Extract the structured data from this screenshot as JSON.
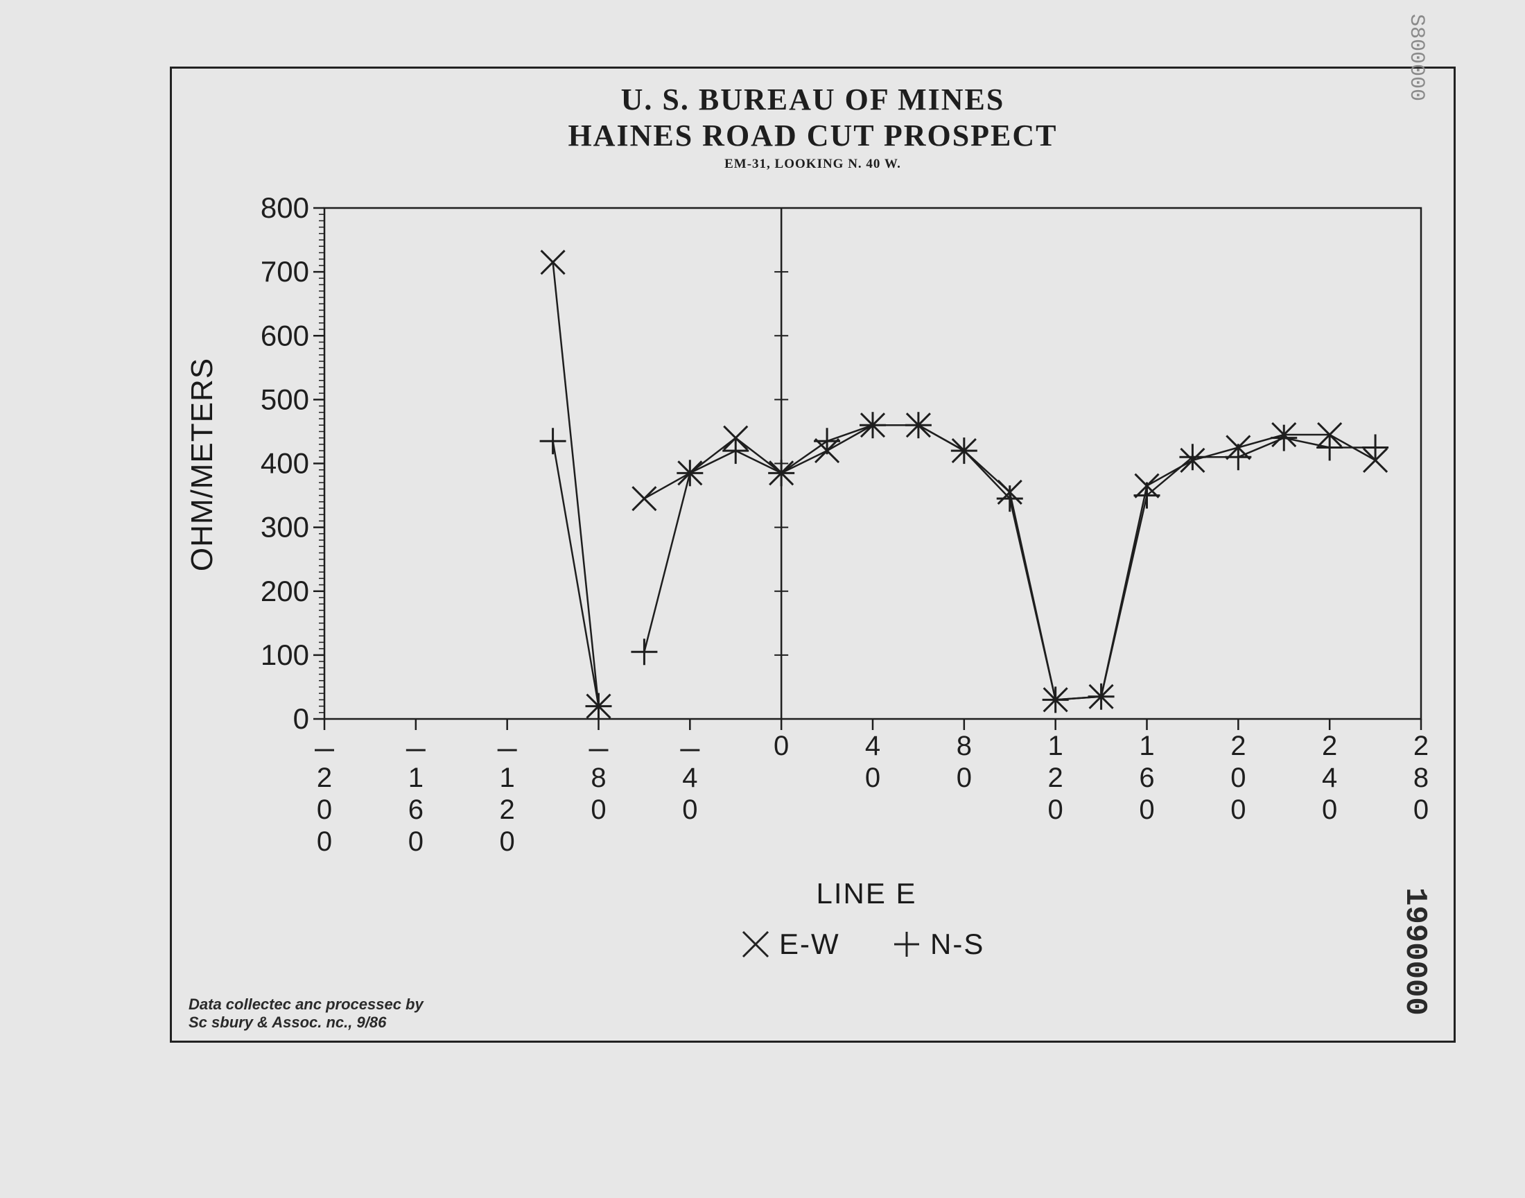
{
  "title_lines": [
    "U. S. BUREAU OF MINES",
    "HAINES ROAD CUT PROSPECT",
    "EM-31, LOOKING N. 40 W."
  ],
  "ylabel": "OHM/METERS",
  "xtitle": "LINE E",
  "legend": [
    {
      "marker": "x-marker-icon",
      "label": "E-W"
    },
    {
      "marker": "plus-marker-icon",
      "label": "N-S"
    }
  ],
  "note_lines": [
    "Data collectec anc processec by",
    "Sc sbury & Assoc. nc., 9/86"
  ],
  "stamps": {
    "side": "1990000",
    "top": "S800000"
  },
  "chart_data": {
    "type": "line",
    "title": "U. S. BUREAU OF MINES",
    "subtitle": "HAINES ROAD CUT PROSPECT — EM-31, LOOKING N. 40 W.",
    "xlabel": "LINE E",
    "ylabel": "OHM/METERS",
    "xlim": [
      -200,
      280
    ],
    "ylim": [
      0,
      800
    ],
    "xticks": [
      -200,
      -160,
      -120,
      -80,
      -40,
      0,
      40,
      80,
      120,
      160,
      200,
      240,
      280
    ],
    "xtick_labels": [
      [
        "–",
        "2",
        "0",
        "0"
      ],
      [
        "–",
        "1",
        "6",
        "0"
      ],
      [
        "–",
        "1",
        "2",
        "0"
      ],
      [
        "–",
        "8",
        "0"
      ],
      [
        "–",
        "4",
        "0"
      ],
      [
        "0"
      ],
      [
        "4",
        "0"
      ],
      [
        "8",
        "0"
      ],
      [
        "1",
        "2",
        "0"
      ],
      [
        "1",
        "6",
        "0"
      ],
      [
        "2",
        "0",
        "0"
      ],
      [
        "2",
        "4",
        "0"
      ],
      [
        "2",
        "8",
        "0"
      ]
    ],
    "yticks": [
      0,
      100,
      200,
      300,
      400,
      500,
      600,
      700,
      800
    ],
    "grid": false,
    "legend_position": "bottom-center",
    "series": [
      {
        "name": "E-W",
        "marker": "x",
        "segments": [
          [
            [
              -100,
              715
            ],
            [
              -80,
              20
            ]
          ],
          [
            [
              -60,
              345
            ],
            [
              -40,
              385
            ],
            [
              -20,
              440
            ],
            [
              0,
              385
            ],
            [
              20,
              420
            ],
            [
              40,
              460
            ],
            [
              60,
              460
            ],
            [
              80,
              420
            ],
            [
              100,
              355
            ],
            [
              120,
              30
            ],
            [
              140,
              35
            ],
            [
              160,
              365
            ],
            [
              180,
              405
            ],
            [
              200,
              425
            ],
            [
              220,
              445
            ],
            [
              240,
              445
            ],
            [
              260,
              405
            ]
          ]
        ]
      },
      {
        "name": "N-S",
        "marker": "+",
        "segments": [
          [
            [
              -100,
              435
            ],
            [
              -80,
              20
            ]
          ],
          [
            [
              -60,
              105
            ],
            [
              -40,
              385
            ],
            [
              -20,
              420
            ],
            [
              0,
              385
            ],
            [
              20,
              435
            ],
            [
              40,
              460
            ],
            [
              60,
              460
            ],
            [
              80,
              420
            ],
            [
              100,
              345
            ],
            [
              120,
              30
            ],
            [
              140,
              35
            ],
            [
              160,
              350
            ],
            [
              180,
              410
            ],
            [
              200,
              410
            ],
            [
              220,
              440
            ],
            [
              240,
              425
            ],
            [
              260,
              425
            ]
          ]
        ]
      }
    ]
  }
}
